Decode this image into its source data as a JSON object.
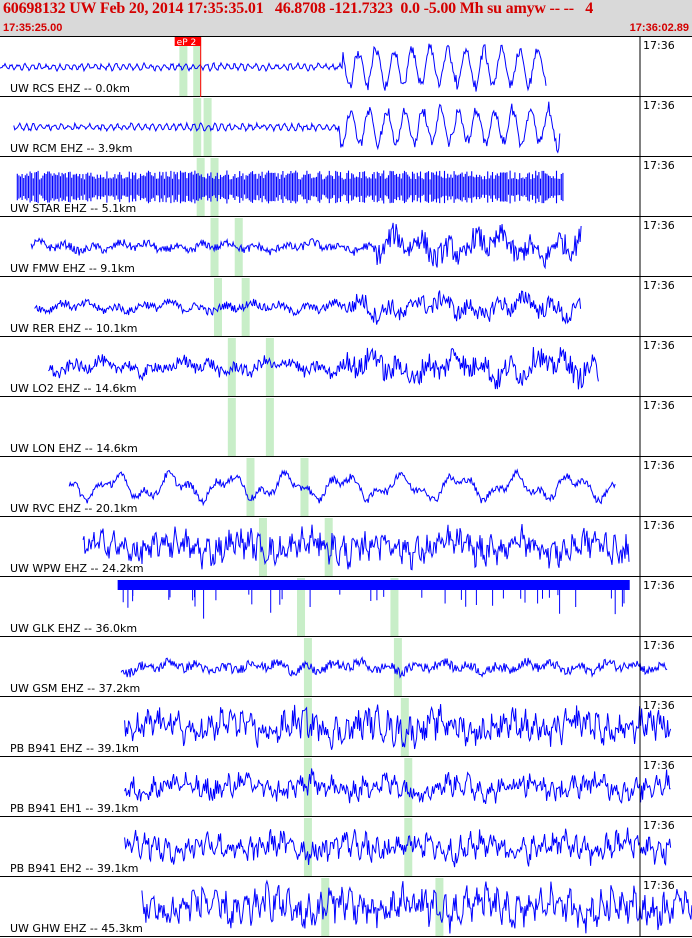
{
  "header": {
    "title": "60698132 UW Feb 20, 2014 17:35:35.01   46.8708 -121.7323  0.0 -5.00 Mh su amyw -- --   4",
    "start_time": "17:35:25.00",
    "end_time": "17:36:02.89"
  },
  "pick": {
    "label": "eP 2",
    "color": "#ff0000"
  },
  "minute_tick": "17:36",
  "colors": {
    "trace": "#0000ff",
    "marker": "#c8eec8",
    "pick": "#ff0000",
    "header_text": "#d40000"
  },
  "traces": [
    {
      "label": "UW RCS EHZ -- 0.0km",
      "style": "calm",
      "start": 0.0,
      "end": 0.79,
      "arrival": 0.495,
      "amp": 0.22,
      "signal_amp": 0.75,
      "markers": [
        0.265,
        0.285
      ]
    },
    {
      "label": "UW RCM EHZ -- 3.9km",
      "style": "calm",
      "start": 0.02,
      "end": 0.81,
      "arrival": 0.49,
      "amp": 0.22,
      "signal_amp": 0.7,
      "markers": [
        0.285,
        0.3
      ]
    },
    {
      "label": "UW STAR EHZ -- 5.1km",
      "style": "block",
      "start": 0.025,
      "end": 0.815,
      "arrival": 0.0,
      "amp": 0.5,
      "signal_amp": 0.5,
      "markers": [
        0.29,
        0.31
      ]
    },
    {
      "label": "UW FMW EHZ -- 9.1km",
      "style": "normal",
      "start": 0.045,
      "end": 0.84,
      "arrival": 0.54,
      "amp": 0.3,
      "signal_amp": 0.85,
      "markers": [
        0.31,
        0.345
      ]
    },
    {
      "label": "UW RER EHZ -- 10.1km",
      "style": "normal",
      "start": 0.05,
      "end": 0.84,
      "arrival": 0.5,
      "amp": 0.3,
      "signal_amp": 0.65,
      "markers": [
        0.315,
        0.355
      ]
    },
    {
      "label": "UW LO2 EHZ -- 14.6km",
      "style": "normal",
      "start": 0.07,
      "end": 0.865,
      "arrival": 0.5,
      "amp": 0.45,
      "signal_amp": 0.85,
      "markers": [
        0.335,
        0.39
      ]
    },
    {
      "label": "UW LON EHZ -- 14.6km",
      "style": "empty",
      "start": 0.0,
      "end": 0.0,
      "arrival": 0.0,
      "amp": 0.0,
      "signal_amp": 0.0,
      "markers": [
        0.335,
        0.39
      ]
    },
    {
      "label": "UW RVC EHZ -- 20.1km",
      "style": "smooth",
      "start": 0.1,
      "end": 0.89,
      "arrival": 0.2,
      "amp": 0.55,
      "signal_amp": 0.6,
      "markers": [
        0.362,
        0.44
      ]
    },
    {
      "label": "UW WPW EHZ -- 24.2km",
      "style": "noisy",
      "start": 0.12,
      "end": 0.91,
      "arrival": 0.2,
      "amp": 0.6,
      "signal_amp": 0.7,
      "markers": [
        0.38,
        0.475
      ]
    },
    {
      "label": "UW GLK EHZ -- 36.0km",
      "style": "glk",
      "start": 0.17,
      "end": 0.91,
      "arrival": 0.2,
      "amp": 0.4,
      "signal_amp": 0.4,
      "markers": [
        0.435,
        0.57
      ]
    },
    {
      "label": "UW GSM EHZ -- 37.2km",
      "style": "normal",
      "start": 0.175,
      "end": 0.965,
      "arrival": 0.2,
      "amp": 0.35,
      "signal_amp": 0.35,
      "markers": [
        0.445,
        0.575
      ]
    },
    {
      "label": "PB B941 EHZ -- 39.1km",
      "style": "noisy",
      "start": 0.18,
      "end": 0.97,
      "arrival": 0.2,
      "amp": 0.7,
      "signal_amp": 0.7,
      "markers": [
        0.445,
        0.585
      ]
    },
    {
      "label": "PB B941 EH1 -- 39.1km",
      "style": "noisy",
      "start": 0.18,
      "end": 0.97,
      "arrival": 0.2,
      "amp": 0.55,
      "signal_amp": 0.55,
      "markers": [
        0.445,
        0.59
      ]
    },
    {
      "label": "PB B941 EH2 -- 39.1km",
      "style": "noisy",
      "start": 0.18,
      "end": 0.97,
      "arrival": 0.2,
      "amp": 0.6,
      "signal_amp": 0.6,
      "markers": [
        0.445,
        0.59
      ]
    },
    {
      "label": "UW GHW EHZ -- 45.3km",
      "style": "noisy",
      "start": 0.205,
      "end": 1.0,
      "arrival": 0.2,
      "amp": 0.8,
      "signal_amp": 0.8,
      "markers": [
        0.47,
        0.635
      ]
    }
  ]
}
